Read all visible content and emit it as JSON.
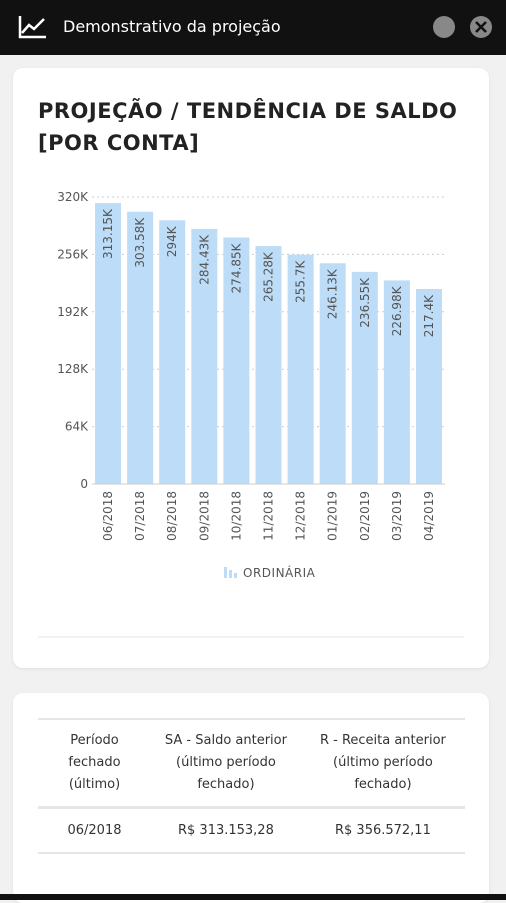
{
  "header": {
    "title": "Demonstrativo da projeção"
  },
  "chart_data": {
    "type": "bar",
    "title": "PROJEÇÃO / TENDÊNCIA DE SALDO [POR CONTA]",
    "categories": [
      "06/2018",
      "07/2018",
      "08/2018",
      "09/2018",
      "10/2018",
      "11/2018",
      "12/2018",
      "01/2019",
      "02/2019",
      "03/2019",
      "04/2019"
    ],
    "series": [
      {
        "name": "ORDINÁRIA",
        "color": "#bcdcf7",
        "values": [
          313150,
          303580,
          294000,
          284430,
          274850,
          265280,
          255700,
          246130,
          236550,
          226980,
          217400
        ],
        "value_labels": [
          "313.15K",
          "303.58K",
          "294K",
          "284.43K",
          "274.85K",
          "265.28K",
          "255.7K",
          "246.13K",
          "236.55K",
          "226.98K",
          "217.4K"
        ]
      }
    ],
    "ylim": [
      0,
      320000
    ],
    "yticks": [
      0,
      {
        "value": 64000,
        "label": "64K"
      },
      {
        "value": 128000,
        "label": "128K"
      },
      {
        "value": 192000,
        "label": "192K"
      },
      {
        "value": 256000,
        "label": "256K"
      },
      {
        "value": 320000,
        "label": "320K"
      }
    ],
    "grid": true
  },
  "table": {
    "columns": [
      "Período fechado (último)",
      "SA - Saldo anterior (último período fechado)",
      "R - Receita anterior (último período fechado)"
    ],
    "rows": [
      [
        "06/2018",
        "R$ 313.153,28",
        "R$ 356.572,11"
      ]
    ]
  }
}
